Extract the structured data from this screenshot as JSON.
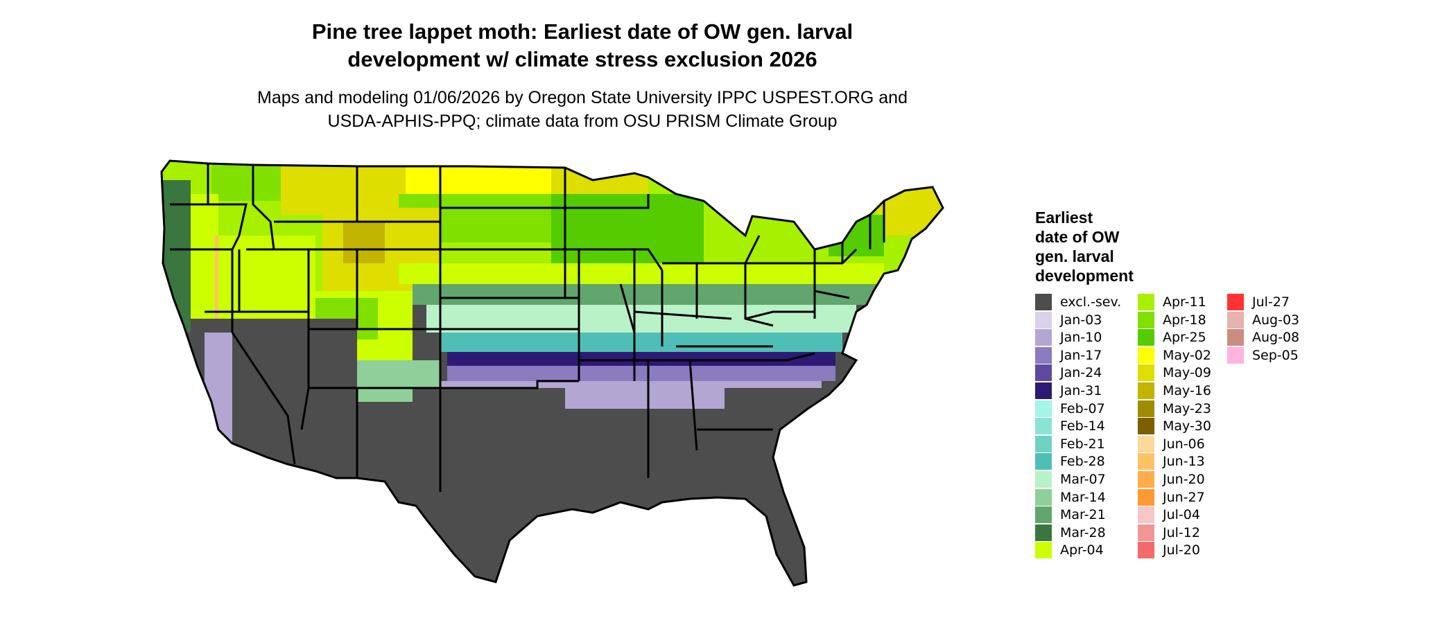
{
  "title": {
    "line1": "Pine tree lappet moth: Earliest date of OW gen. larval",
    "line2": "development w/ climate stress exclusion 2026"
  },
  "subtitle": {
    "line1": "Maps and modeling 01/06/2026 by Oregon State University IPPC USPEST.ORG and",
    "line2": "USDA-APHIS-PPQ; climate data from OSU PRISM Climate Group"
  },
  "legend": {
    "title": [
      "Earliest",
      "date of OW",
      "gen. larval",
      "development"
    ],
    "columns": [
      [
        {
          "label": "excl.-sev.",
          "color": "#4d4d4d"
        },
        {
          "label": "Jan-03",
          "color": "#d9d2ea"
        },
        {
          "label": "Jan-10",
          "color": "#b2a6d3"
        },
        {
          "label": "Jan-17",
          "color": "#8a7cbf"
        },
        {
          "label": "Jan-24",
          "color": "#5e4a9e"
        },
        {
          "label": "Jan-31",
          "color": "#2e1a74"
        },
        {
          "label": "Feb-07",
          "color": "#a4f5e3"
        },
        {
          "label": "Feb-14",
          "color": "#8ae4d4"
        },
        {
          "label": "Feb-21",
          "color": "#6fd2c5"
        },
        {
          "label": "Feb-28",
          "color": "#4fbfb6"
        },
        {
          "label": "Mar-07",
          "color": "#b9f2c7"
        },
        {
          "label": "Mar-14",
          "color": "#8fcf99"
        },
        {
          "label": "Mar-21",
          "color": "#63a56e"
        },
        {
          "label": "Mar-28",
          "color": "#3a7640"
        },
        {
          "label": "Apr-04",
          "color": "#ccff00"
        }
      ],
      [
        {
          "label": "Apr-11",
          "color": "#a6f000"
        },
        {
          "label": "Apr-18",
          "color": "#80e000"
        },
        {
          "label": "Apr-25",
          "color": "#55cc00"
        },
        {
          "label": "May-02",
          "color": "#ffff00"
        },
        {
          "label": "May-09",
          "color": "#dede00"
        },
        {
          "label": "May-16",
          "color": "#c2b400"
        },
        {
          "label": "May-23",
          "color": "#a08c00"
        },
        {
          "label": "May-30",
          "color": "#7c5f00"
        },
        {
          "label": "Jun-06",
          "color": "#ffd999"
        },
        {
          "label": "Jun-13",
          "color": "#ffc266"
        },
        {
          "label": "Jun-20",
          "color": "#ffad4d"
        },
        {
          "label": "Jun-27",
          "color": "#ff9933"
        },
        {
          "label": "Jul-04",
          "color": "#f7c6c6"
        },
        {
          "label": "Jul-12",
          "color": "#f29595"
        },
        {
          "label": "Jul-20",
          "color": "#f26a6a"
        }
      ],
      [
        {
          "label": "Jul-27",
          "color": "#ff3333"
        },
        {
          "label": "Aug-03",
          "color": "#e6b3ad"
        },
        {
          "label": "Aug-08",
          "color": "#cc8c80"
        },
        {
          "label": "Sep-05",
          "color": "#ffb3e0"
        }
      ]
    ]
  }
}
